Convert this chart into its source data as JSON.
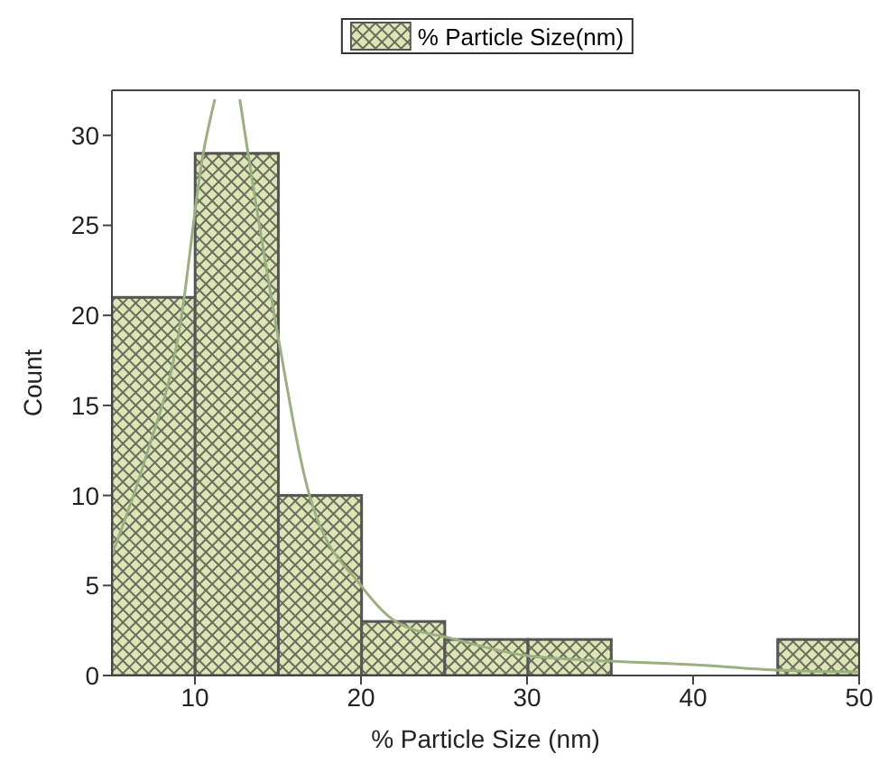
{
  "chart_data": {
    "type": "histogram",
    "xlabel": "% Particle Size (nm)",
    "ylabel": "Count",
    "bins": [
      5,
      10,
      15,
      20,
      25,
      30,
      35,
      40,
      45,
      50
    ],
    "series": [
      {
        "name": "% Particle Size(nm)",
        "color": "#dce6b4",
        "values": [
          21,
          29,
          10,
          3,
          2,
          2,
          0,
          0,
          2
        ]
      },
      {
        "type": "line",
        "color": "#9bb07f",
        "x": [
          5,
          7,
          9.1,
          10.5,
          11.2,
          11.9,
          12.7,
          13.2,
          14.9,
          16.9,
          20,
          22.1,
          25.7,
          30,
          35,
          40,
          45,
          50
        ],
        "values": [
          6.7,
          12,
          19.4,
          29,
          32,
          null,
          32,
          29,
          19.4,
          10,
          5,
          3,
          2,
          1.1,
          0.8,
          0.6,
          0.3,
          0.2
        ]
      }
    ],
    "xlim": [
      5,
      50
    ],
    "xticks": [
      10,
      20,
      30,
      40,
      50
    ],
    "ylim": [
      0,
      32.5
    ],
    "yticks": [
      0,
      5,
      10,
      15,
      20,
      25,
      30
    ],
    "legend": "top",
    "grid": false
  }
}
